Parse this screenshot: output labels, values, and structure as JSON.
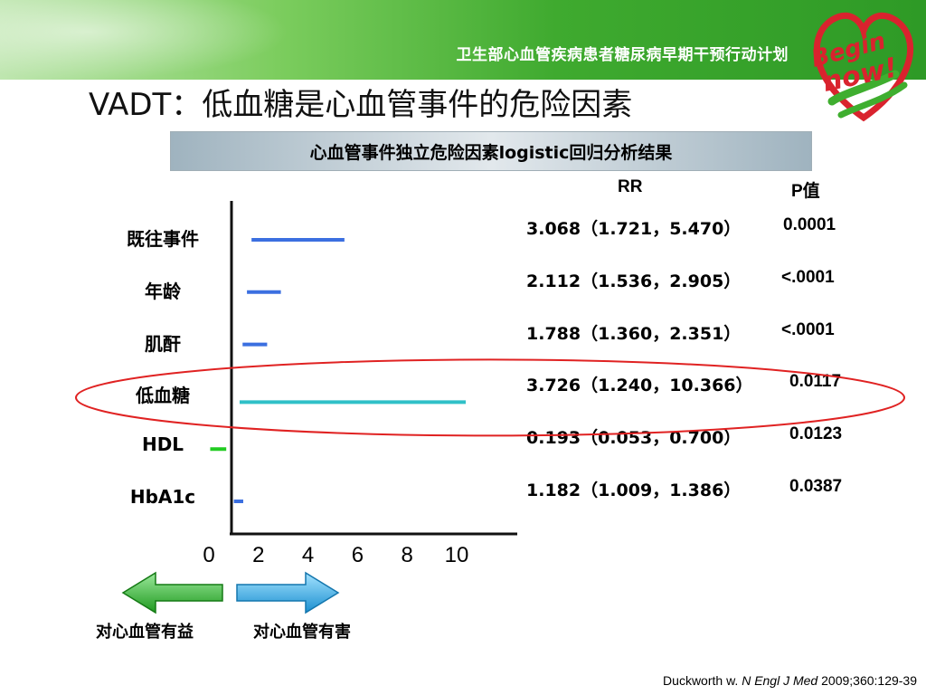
{
  "banner": {
    "text": "卫生部心血管疾病患者糖尿病早期干预行动计划"
  },
  "logo": {
    "line1": "Begin",
    "line2": "now!"
  },
  "title": "VADT：低血糖是心血管事件的危险因素",
  "subtitle": "心血管事件独立危险因素logistic回归分析结果",
  "chart_data": {
    "type": "forest",
    "title": "心血管事件独立危险因素logistic回归分析结果",
    "columns": {
      "rr": "RR",
      "p": "P值"
    },
    "xticks": [
      0,
      2,
      4,
      6,
      8,
      10
    ],
    "xlim": [
      0,
      10
    ],
    "rows": [
      {
        "label": "既往事件",
        "ci_low": 1.721,
        "ci_high": 5.47,
        "rr_text": "3.068（1.721，5.470）",
        "p_text": "0.0001",
        "color": "#3b6fe0"
      },
      {
        "label": "年龄",
        "ci_low": 1.536,
        "ci_high": 2.905,
        "rr_text": "2.112（1.536，2.905）",
        "p_text": "<.0001",
        "color": "#3b6fe0"
      },
      {
        "label": "肌酐",
        "ci_low": 1.36,
        "ci_high": 2.351,
        "rr_text": "1.788（1.360，2.351）",
        "p_text": "<.0001",
        "color": "#3b6fe0"
      },
      {
        "label": "低血糖",
        "ci_low": 1.24,
        "ci_high": 10.366,
        "rr_text": "3.726（1.240，10.366）",
        "p_text": "0.0117",
        "color": "#2fc0c8",
        "highlight": true
      },
      {
        "label": "HDL",
        "ci_low": 0.053,
        "ci_high": 0.7,
        "rr_text": "0.193（0.053，0.700）",
        "p_text": "0.0123",
        "color": "#22cc22"
      },
      {
        "label": "HbA1c",
        "ci_low": 1.009,
        "ci_high": 1.386,
        "rr_text": "1.182（1.009，1.386）",
        "p_text": "0.0387",
        "color": "#3b6fe0"
      }
    ]
  },
  "arrows": {
    "benefit": {
      "label": "对心血管有益",
      "color": "#2fbf2f"
    },
    "harm": {
      "label": "对心血管有害",
      "color": "#29a8e6"
    }
  },
  "citation": {
    "author": "Duckworth w.",
    "journal": "N  Engl J Med",
    "ref": "2009;360:129-39"
  }
}
